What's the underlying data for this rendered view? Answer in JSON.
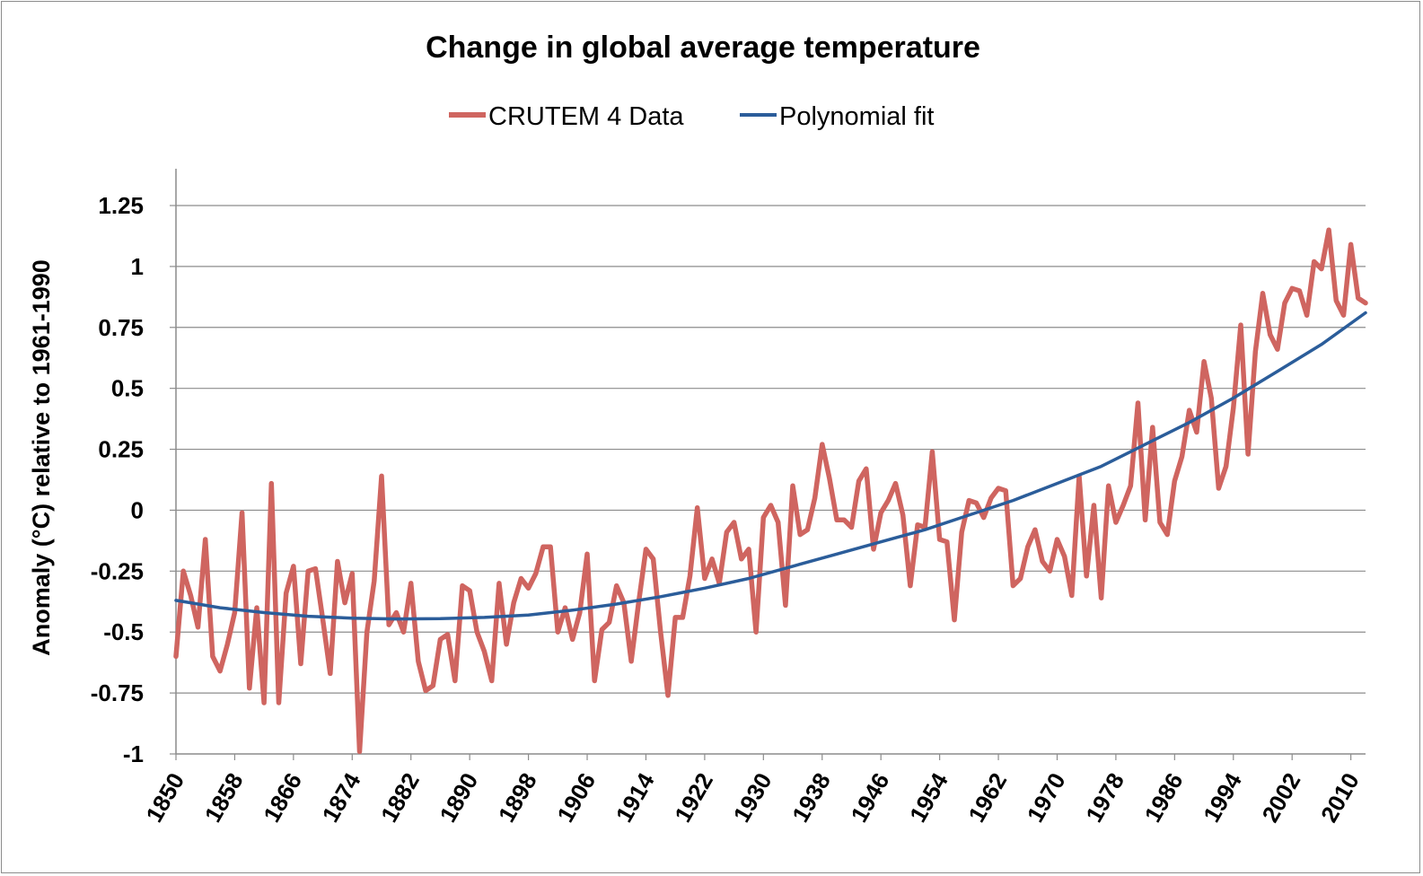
{
  "chart_data": {
    "type": "line",
    "title": "Change in global average temperature",
    "xlabel": "",
    "ylabel": "Anomaly (°C) relative to 1961-1990",
    "ylim": [
      -1,
      1.25
    ],
    "ytick_values": [
      -1,
      -0.75,
      -0.5,
      -0.25,
      0,
      0.25,
      0.5,
      0.75,
      1,
      1.25
    ],
    "ytick_labels": [
      "-1",
      "-0.75",
      "-0.5",
      "-0.25",
      "0",
      "0.25",
      "0.5",
      "0.75",
      "1",
      "1.25"
    ],
    "xlim": [
      1850,
      2012
    ],
    "xtick_labels": [
      "1850",
      "1858",
      "1866",
      "1874",
      "1882",
      "1890",
      "1898",
      "1906",
      "1914",
      "1922",
      "1930",
      "1938",
      "1946",
      "1954",
      "1962",
      "1970",
      "1978",
      "1986",
      "1994",
      "2002",
      "2010"
    ],
    "grid": "horizontal",
    "legend_position": "top",
    "colors": {
      "data": "#cf6560",
      "fit": "#2b5d9a"
    },
    "series": [
      {
        "name": "CRUTEM 4 Data",
        "x": [
          1850,
          1851,
          1852,
          1853,
          1854,
          1855,
          1856,
          1857,
          1858,
          1859,
          1860,
          1861,
          1862,
          1863,
          1864,
          1865,
          1866,
          1867,
          1868,
          1869,
          1870,
          1871,
          1872,
          1873,
          1874,
          1875,
          1876,
          1877,
          1878,
          1879,
          1880,
          1881,
          1882,
          1883,
          1884,
          1885,
          1886,
          1887,
          1888,
          1889,
          1890,
          1891,
          1892,
          1893,
          1894,
          1895,
          1896,
          1897,
          1898,
          1899,
          1900,
          1901,
          1902,
          1903,
          1904,
          1905,
          1906,
          1907,
          1908,
          1909,
          1910,
          1911,
          1912,
          1913,
          1914,
          1915,
          1916,
          1917,
          1918,
          1919,
          1920,
          1921,
          1922,
          1923,
          1924,
          1925,
          1926,
          1927,
          1928,
          1929,
          1930,
          1931,
          1932,
          1933,
          1934,
          1935,
          1936,
          1937,
          1938,
          1939,
          1940,
          1941,
          1942,
          1943,
          1944,
          1945,
          1946,
          1947,
          1948,
          1949,
          1950,
          1951,
          1952,
          1953,
          1954,
          1955,
          1956,
          1957,
          1958,
          1959,
          1960,
          1961,
          1962,
          1963,
          1964,
          1965,
          1966,
          1967,
          1968,
          1969,
          1970,
          1971,
          1972,
          1973,
          1974,
          1975,
          1976,
          1977,
          1978,
          1979,
          1980,
          1981,
          1982,
          1983,
          1984,
          1985,
          1986,
          1987,
          1988,
          1989,
          1990,
          1991,
          1992,
          1993,
          1994,
          1995,
          1996,
          1997,
          1998,
          1999,
          2000,
          2001,
          2002,
          2003,
          2004,
          2005,
          2006,
          2007,
          2008,
          2009,
          2010,
          2011,
          2012
        ],
        "values": [
          -0.6,
          -0.25,
          -0.35,
          -0.48,
          -0.12,
          -0.6,
          -0.66,
          -0.55,
          -0.42,
          -0.01,
          -0.73,
          -0.4,
          -0.79,
          0.11,
          -0.79,
          -0.34,
          -0.23,
          -0.63,
          -0.25,
          -0.24,
          -0.45,
          -0.67,
          -0.21,
          -0.38,
          -0.26,
          -0.99,
          -0.5,
          -0.29,
          0.14,
          -0.47,
          -0.42,
          -0.5,
          -0.3,
          -0.62,
          -0.74,
          -0.72,
          -0.53,
          -0.51,
          -0.7,
          -0.31,
          -0.33,
          -0.5,
          -0.58,
          -0.7,
          -0.3,
          -0.55,
          -0.38,
          -0.28,
          -0.32,
          -0.26,
          -0.15,
          -0.15,
          -0.5,
          -0.4,
          -0.53,
          -0.42,
          -0.18,
          -0.7,
          -0.49,
          -0.46,
          -0.31,
          -0.38,
          -0.62,
          -0.38,
          -0.16,
          -0.2,
          -0.5,
          -0.76,
          -0.44,
          -0.44,
          -0.27,
          0.01,
          -0.28,
          -0.2,
          -0.3,
          -0.09,
          -0.05,
          -0.2,
          -0.16,
          -0.5,
          -0.03,
          0.02,
          -0.05,
          -0.39,
          0.1,
          -0.1,
          -0.08,
          0.05,
          0.27,
          0.13,
          -0.04,
          -0.04,
          -0.07,
          0.12,
          0.17,
          -0.16,
          -0.01,
          0.04,
          0.11,
          -0.02,
          -0.31,
          -0.06,
          -0.07,
          0.24,
          -0.12,
          -0.13,
          -0.45,
          -0.09,
          0.04,
          0.03,
          -0.03,
          0.05,
          0.09,
          0.08,
          -0.31,
          -0.28,
          -0.15,
          -0.08,
          -0.21,
          -0.25,
          -0.12,
          -0.19,
          -0.35,
          0.14,
          -0.27,
          0.02,
          -0.36,
          0.1,
          -0.05,
          0.02,
          0.1,
          0.44,
          -0.04,
          0.34,
          -0.05,
          -0.1,
          0.12,
          0.22,
          0.41,
          0.32,
          0.61,
          0.46,
          0.09,
          0.18,
          0.42,
          0.76,
          0.23,
          0.65,
          0.89,
          0.72,
          0.66,
          0.85,
          0.91,
          0.9,
          0.8,
          1.02,
          0.99,
          1.15,
          0.86,
          0.8,
          1.09,
          0.87,
          0.85
        ]
      },
      {
        "name": "Polynomial fit",
        "x": [
          1850,
          1856,
          1862,
          1868,
          1874,
          1880,
          1886,
          1892,
          1898,
          1904,
          1910,
          1916,
          1922,
          1928,
          1934,
          1940,
          1946,
          1952,
          1958,
          1964,
          1970,
          1976,
          1982,
          1988,
          1994,
          2000,
          2006,
          2012
        ],
        "values": [
          -0.37,
          -0.4,
          -0.42,
          -0.435,
          -0.443,
          -0.446,
          -0.445,
          -0.44,
          -0.43,
          -0.41,
          -0.385,
          -0.355,
          -0.32,
          -0.28,
          -0.23,
          -0.18,
          -0.13,
          -0.08,
          -0.02,
          0.04,
          0.11,
          0.18,
          0.27,
          0.36,
          0.46,
          0.57,
          0.68,
          0.81
        ]
      }
    ]
  }
}
